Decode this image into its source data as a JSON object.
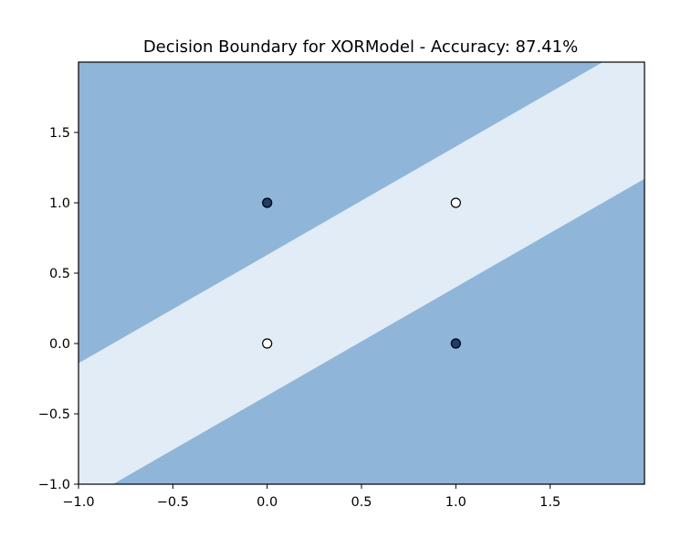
{
  "chart_data": {
    "type": "contour",
    "title": "Decision Boundary for XORModel - Accuracy: 87.41%",
    "xlabel": "",
    "ylabel": "",
    "xlim": [
      -1.0,
      2.0
    ],
    "ylim": [
      -1.0,
      2.0
    ],
    "xticks": [
      -1.0,
      -0.5,
      0.0,
      0.5,
      1.0,
      1.5
    ],
    "yticks": [
      -1.0,
      -0.5,
      0.0,
      0.5,
      1.0,
      1.5
    ],
    "xtick_labels": [
      "−1.0",
      "−0.5",
      "0.0",
      "0.5",
      "1.0",
      "1.5"
    ],
    "ytick_labels": [
      "−1.0",
      "−0.5",
      "0.0",
      "0.5",
      "1.0",
      "1.5"
    ],
    "grid": false,
    "regions": [
      {
        "class": 1,
        "color": "#8fb6d9",
        "area": "outside diagonal band"
      },
      {
        "class": 0,
        "color": "#e2ecf6",
        "area": "diagonal band"
      }
    ],
    "band_boundaries": [
      {
        "slope": 0.77,
        "intercept": 0.63
      },
      {
        "slope": 0.77,
        "intercept": -0.37
      }
    ],
    "points": [
      {
        "x": 0.0,
        "y": 1.0,
        "label": 1,
        "color": "#1f3d6b"
      },
      {
        "x": 1.0,
        "y": 0.0,
        "label": 1,
        "color": "#1f3d6b"
      },
      {
        "x": 0.0,
        "y": 0.0,
        "label": 0,
        "color": "#ffffff"
      },
      {
        "x": 1.0,
        "y": 1.0,
        "label": 0,
        "color": "#ffffff"
      }
    ],
    "colors": {
      "outer_region": "#8fb6d9",
      "band_region": "#e2ecf6",
      "point_edge": "#000000"
    }
  }
}
